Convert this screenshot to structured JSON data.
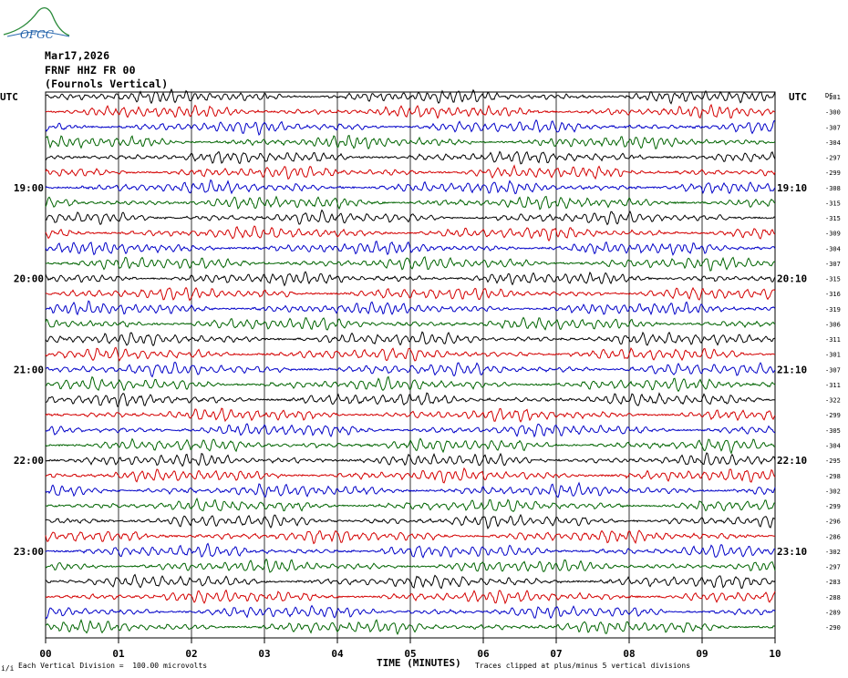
{
  "logo": {
    "text": "OFGC"
  },
  "header": {
    "date": "Mar17,2026",
    "station": "FRNF HHZ FR 00",
    "location": "(Fournols Vertical)"
  },
  "left_axis": {
    "label": "UTC",
    "times": [
      "19:00",
      "20:00",
      "21:00",
      "22:00",
      "23:00"
    ]
  },
  "right_axis": {
    "label": "UTC",
    "dc_label": "DC",
    "times": [
      "19:10",
      "20:10",
      "21:10",
      "22:10",
      "23:10"
    ]
  },
  "footer": {
    "division": "Each Vertical Division =  100.00 microvolts",
    "clip_note": "Traces clipped at plus/minus 5 vertical divisions",
    "corner_mark": "i/i"
  },
  "colors": {
    "trace_cycle": [
      "#000000",
      "#d40000",
      "#0000c8",
      "#006400"
    ],
    "grid": "#000000"
  },
  "chart_data": {
    "type": "line",
    "title": "",
    "xlabel": "TIME (MINUTES)",
    "ylabel": "UTC",
    "x_ticks": [
      "00",
      "01",
      "02",
      "03",
      "04",
      "05",
      "06",
      "07",
      "08",
      "09",
      "10"
    ],
    "xlim": [
      0,
      10
    ],
    "trace_count": 36,
    "dc_offsets": [
      -281,
      -300,
      -307,
      -304,
      -297,
      -299,
      -308,
      -315,
      -315,
      -309,
      -304,
      -307,
      -315,
      -316,
      -319,
      -306,
      -311,
      -301,
      -307,
      -311,
      -322,
      -299,
      -305,
      -304,
      -295,
      -298,
      -302,
      -299,
      -296,
      -286,
      -302,
      -297,
      -283,
      -288,
      -289,
      -290
    ]
  }
}
